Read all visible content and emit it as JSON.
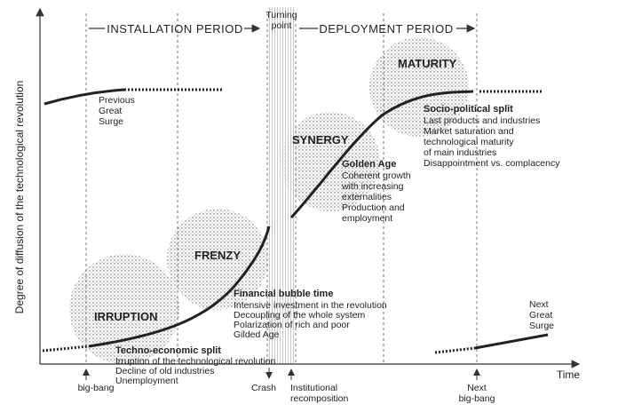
{
  "axis": {
    "y_label": "Degree of diffusion of the technological revolution",
    "x_label": "Time"
  },
  "periods": {
    "installation": "INSTALLATION PERIOD",
    "turning_point": [
      "Turning",
      "point"
    ],
    "deployment": "DEPLOYMENT PERIOD"
  },
  "previous_surge": [
    "Previous",
    "Great",
    "Surge"
  ],
  "next_surge": [
    "Next",
    "Great",
    "Surge"
  ],
  "phases": [
    {
      "name": "IRRUPTION",
      "heading": "Techno-economic split",
      "lines": [
        "Irruption of the technological revolution",
        "Decline of old industries",
        "Unemployment"
      ]
    },
    {
      "name": "FRENZY",
      "heading": "Financial bubble time",
      "lines": [
        "Intensive investment in the revolution",
        "Decoupling of the whole system",
        "Polarization of rich and poor",
        "Gilded Age"
      ]
    },
    {
      "name": "SYNERGY",
      "heading": "Golden Age",
      "lines": [
        "Coherent growth",
        "with increasing",
        "externalities",
        "Production and",
        "employment"
      ]
    },
    {
      "name": "MATURITY",
      "heading": "Socio-political split",
      "lines": [
        "Last products and industries",
        "Market saturation and",
        "technological maturity",
        "of main industries",
        "Disappointment vs. complacency"
      ]
    }
  ],
  "events": [
    {
      "lines": [
        "big-bang"
      ]
    },
    {
      "lines": [
        "Crash"
      ]
    },
    {
      "lines": [
        "Institutional",
        "recomposition"
      ]
    },
    {
      "lines": [
        "Next",
        "big-bang"
      ]
    }
  ]
}
